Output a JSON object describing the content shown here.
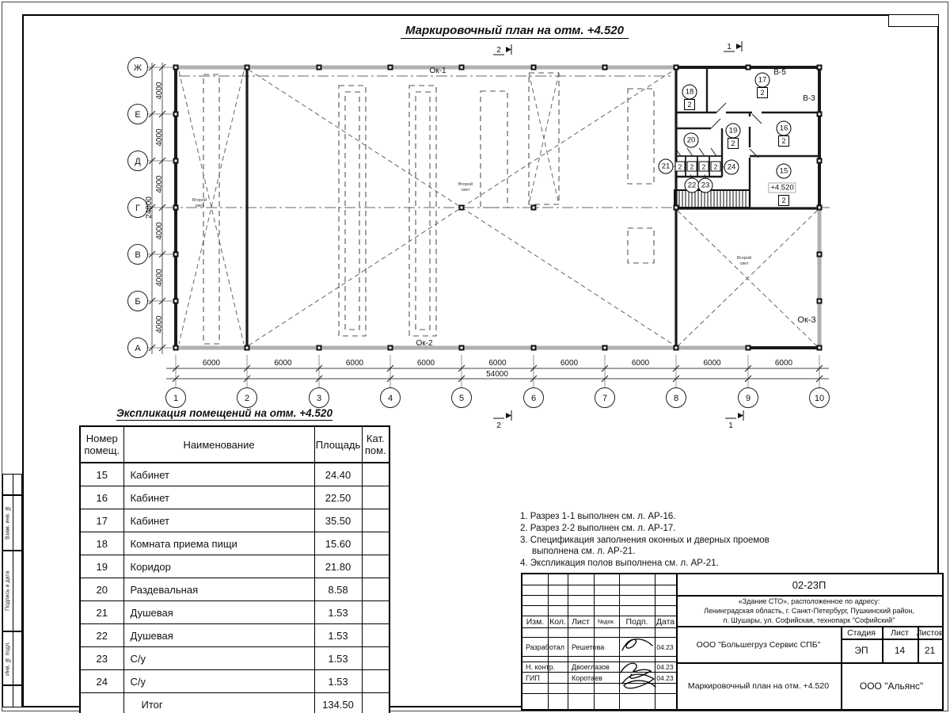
{
  "sheet": {
    "plan_title": "Маркировочный план на отм. +4.520"
  },
  "plan": {
    "column_labels": [
      "1",
      "2",
      "3",
      "4",
      "5",
      "6",
      "7",
      "8",
      "9",
      "10"
    ],
    "bay_width_label": "6000",
    "total_width_label": "54000",
    "row_labels": [
      "Ж",
      "Е",
      "Д",
      "Г",
      "В",
      "Б",
      "А"
    ],
    "bay_height_label": "4000",
    "total_height_label": "24000",
    "window_labels": {
      "ok1": "Ок-1",
      "ok2": "Ок-2",
      "ok3": "Ок-3"
    },
    "block_labels": {
      "v5": "В-5",
      "v3": "В-3"
    },
    "second_light_line1": "Второй",
    "second_light_line2": "свет",
    "elevation_label": "+4.520",
    "section_markers": {
      "s1": "1",
      "s2": "2"
    },
    "room_markers": [
      {
        "no": "18",
        "cat": "2"
      },
      {
        "no": "17",
        "cat": "2"
      },
      {
        "no": "19",
        "cat": "2"
      },
      {
        "no": "16",
        "cat": "2"
      },
      {
        "no": "20"
      },
      {
        "no": "21",
        "cat": "2"
      },
      {
        "no": "24",
        "cat": "2"
      },
      {
        "no": "22",
        "cat": "2"
      },
      {
        "no": "23",
        "cat": "2"
      },
      {
        "no": "15",
        "cat": "2"
      }
    ]
  },
  "explication": {
    "title": "Экспликация помещений на отм. +4.520",
    "headers": [
      "Номер помещ.",
      "Наименование",
      "Площадь",
      "Кат. пом."
    ],
    "rows": [
      [
        "15",
        "Кабинет",
        "24.40",
        ""
      ],
      [
        "16",
        "Кабинет",
        "22.50",
        ""
      ],
      [
        "17",
        "Кабинет",
        "35.50",
        ""
      ],
      [
        "18",
        "Комната приема пищи",
        "15.60",
        ""
      ],
      [
        "19",
        "Коридор",
        "21.80",
        ""
      ],
      [
        "20",
        "Раздевальная",
        "8.58",
        ""
      ],
      [
        "21",
        "Душевая",
        "1.53",
        ""
      ],
      [
        "22",
        "Душевая",
        "1.53",
        ""
      ],
      [
        "23",
        "С/у",
        "1.53",
        ""
      ],
      [
        "24",
        "С/у",
        "1.53",
        ""
      ]
    ],
    "total_label": "Итог",
    "total_value": "134.50"
  },
  "notes": [
    "1. Разрез 1-1 выполнен см. л. АР-16.",
    "2. Разрез 2-2 выполнен см. л. АР-17.",
    "3. Спецификация заполнения оконных и дверных проемов выполнена см. л. АР-21.",
    "4. Экспликация полов выполнена см. л. АР-21."
  ],
  "titleblock": {
    "doc_number": "02-23П",
    "address_line1": "«Здание СТО», расположенное по адресу:",
    "address_line2": "Ленинградская область, г. Санкт-Петербург, Пушкинский район,",
    "address_line3": "п. Шушары, ул. Софийская, технопарк \"Софийский\"",
    "header_cols": [
      "Изм.",
      "Кол.",
      "Лист",
      "№док.",
      "Подп.",
      "Дата"
    ],
    "sign_rows": [
      {
        "role": "Разработал",
        "name": "Решетова",
        "date": "04.23"
      },
      {
        "role": "Н. контр.",
        "name": "Двоеглазов",
        "date": "04.23"
      },
      {
        "role": "ГИП",
        "name": "Коротаев",
        "date": "04.23"
      }
    ],
    "company": "ООО \"Большегруз Сервис СПБ\"",
    "stage_label": "Стадия",
    "sheet_label": "Лист",
    "sheets_label": "Листов",
    "stage": "ЭП",
    "sheet": "14",
    "sheets": "21",
    "plan_name": "Маркировочный план на отм. +4.520",
    "contractor": "ООО \"Альянс\""
  },
  "frame": {
    "side_labels": [
      "Взам. инв. №",
      "Подпись и дата",
      "Инв. № подл."
    ]
  }
}
